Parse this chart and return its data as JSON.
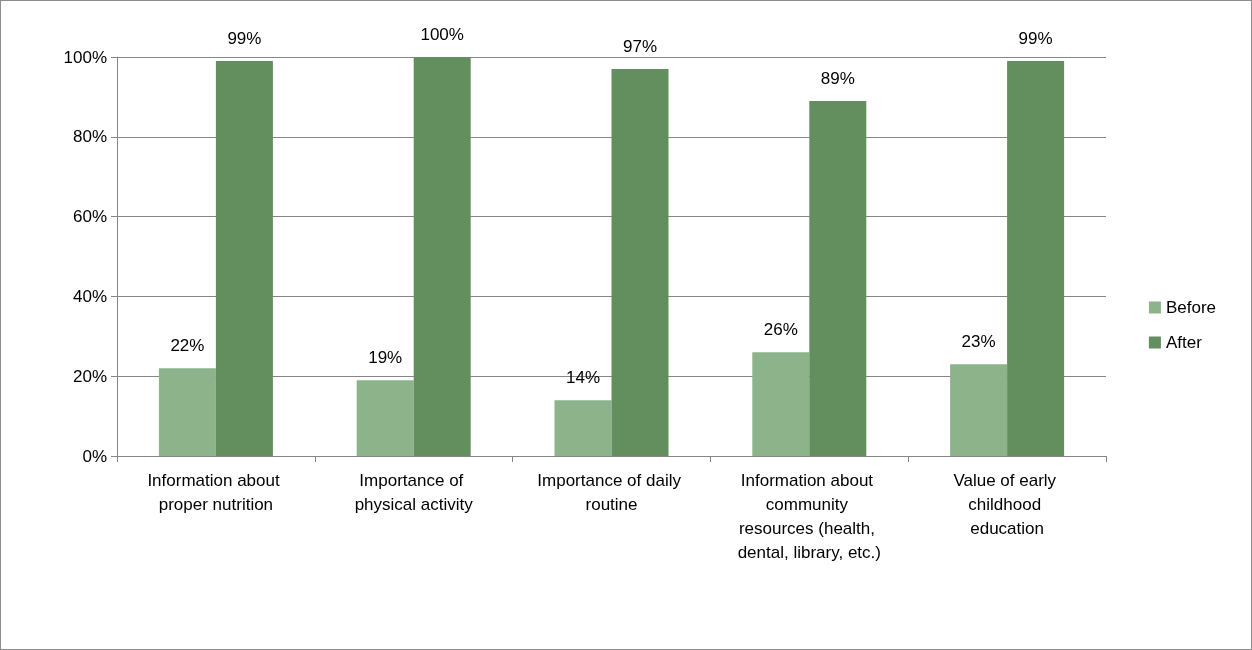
{
  "chart_data": {
    "type": "bar",
    "categories": [
      "Information about proper nutrition",
      "Importance of physical activity",
      "Importance of daily routine",
      "Information about community resources (health, dental, library, etc.)",
      "Value of early childhood education"
    ],
    "series": [
      {
        "name": "Before",
        "color": "#8db38b",
        "values": [
          22,
          19,
          14,
          26,
          23
        ],
        "value_labels": [
          "22%",
          "19%",
          "14%",
          "26%",
          "23%"
        ]
      },
      {
        "name": "After",
        "color": "#638f5f",
        "values": [
          99,
          100,
          97,
          89,
          99
        ],
        "value_labels": [
          "99%",
          "100%",
          "97%",
          "89%",
          "99%"
        ]
      }
    ],
    "ylim": [
      0,
      100
    ],
    "yticks": [
      {
        "value": 0,
        "label": "0%"
      },
      {
        "value": 20,
        "label": "20%"
      },
      {
        "value": 40,
        "label": "40%"
      },
      {
        "value": 60,
        "label": "60%"
      },
      {
        "value": 80,
        "label": "80%"
      },
      {
        "value": 100,
        "label": "100%"
      }
    ],
    "grid": "y",
    "legend": "right"
  }
}
